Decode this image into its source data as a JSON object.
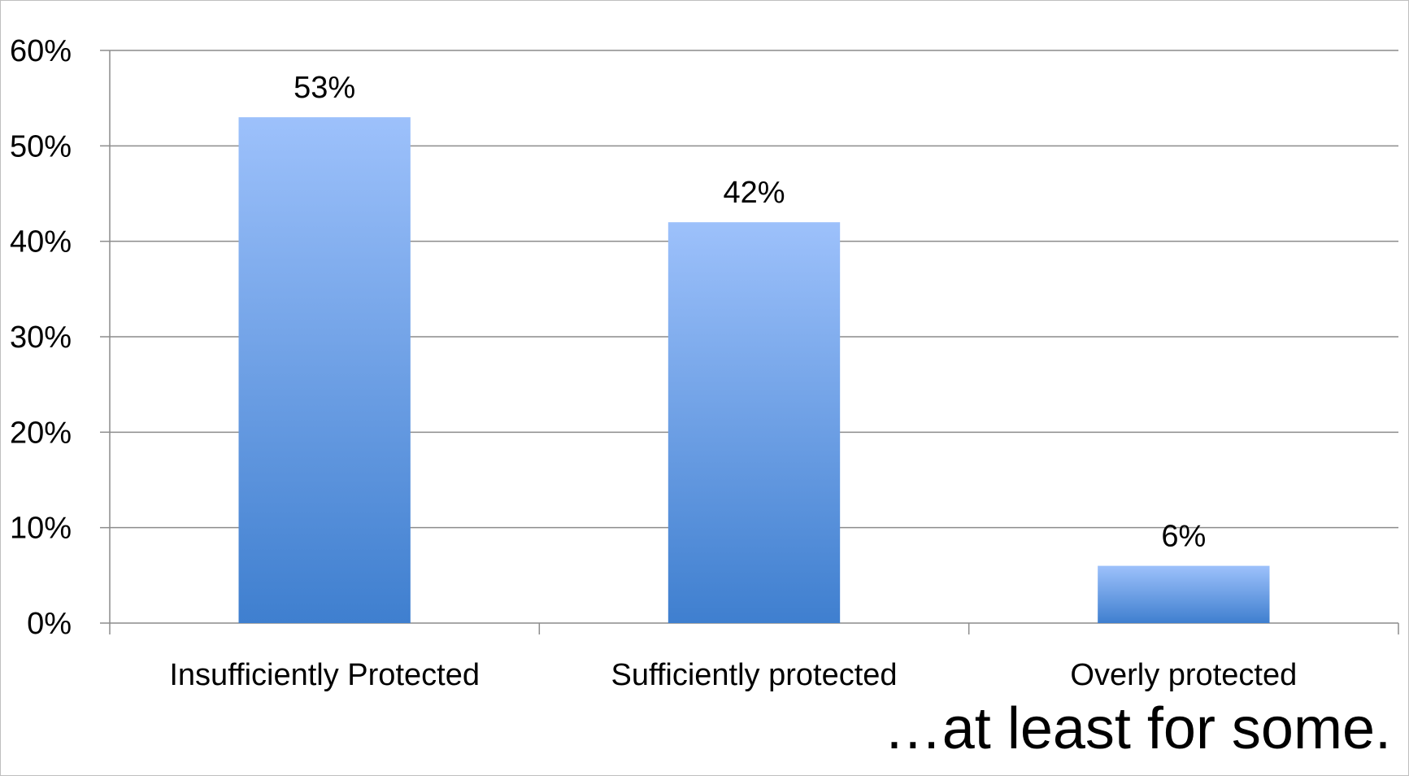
{
  "chart_data": {
    "type": "bar",
    "title": "",
    "xlabel": "",
    "ylabel": "",
    "categories": [
      "Insufficiently Protected",
      "Sufficiently protected",
      "Overly protected"
    ],
    "values": [
      53,
      42,
      6
    ],
    "data_labels": [
      "53%",
      "42%",
      "6%"
    ],
    "ylim": [
      0,
      60
    ],
    "yticks": [
      0,
      10,
      20,
      30,
      40,
      50,
      60
    ],
    "ytick_labels": [
      "0%",
      "10%",
      "20%",
      "30%",
      "40%",
      "50%",
      "60%"
    ],
    "grid": true,
    "legend": "none",
    "colors": {
      "bar_top": "#9dc1fb",
      "bar_bottom": "#3f7fcf",
      "grid": "#8c8c8c",
      "axis": "#8c8c8c"
    }
  },
  "caption": "…at least for some."
}
